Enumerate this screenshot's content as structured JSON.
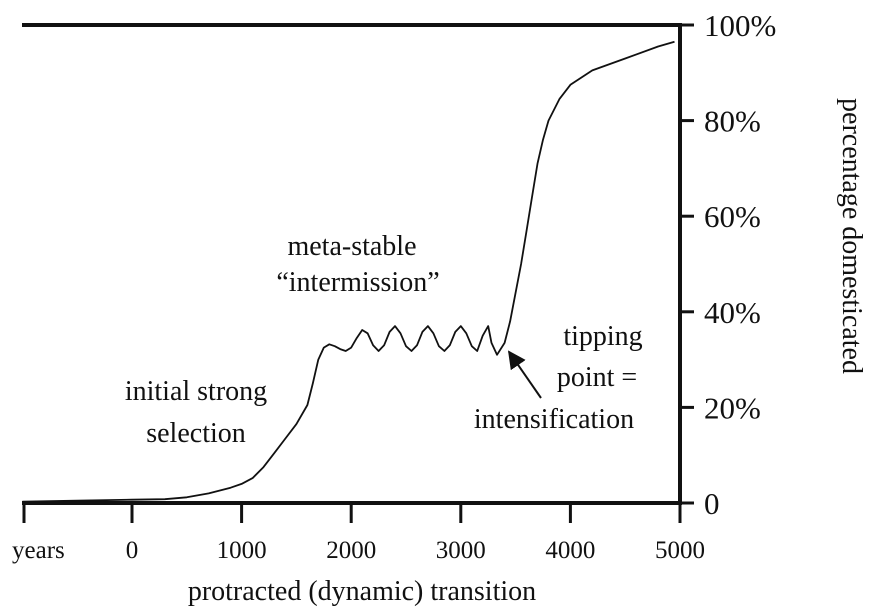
{
  "chart_data": {
    "type": "line",
    "title": "",
    "xlabel": "protracted (dynamic) transition",
    "ylabel": "percentage domesticated",
    "x_unit_label": "years",
    "xlim": [
      -1000,
      5000
    ],
    "ylim": [
      0,
      100
    ],
    "x_ticks": [
      0,
      1000,
      2000,
      3000,
      4000,
      5000
    ],
    "x_tick_labels": [
      "0",
      "1000",
      "2000",
      "3000",
      "4000",
      "5000"
    ],
    "y_ticks": [
      0,
      20,
      40,
      60,
      80,
      100
    ],
    "y_tick_labels": [
      "0",
      "20%",
      "40%",
      "60%",
      "80%",
      "100%"
    ],
    "y_axis_side": "right",
    "grid": false,
    "series": [
      {
        "points": [
          [
            -1000,
            0.3
          ],
          [
            -500,
            0.5
          ],
          [
            0,
            0.7
          ],
          [
            300,
            0.8
          ],
          [
            500,
            1.2
          ],
          [
            700,
            2.0
          ],
          [
            900,
            3.2
          ],
          [
            1000,
            4.0
          ],
          [
            1100,
            5.2
          ],
          [
            1200,
            7.5
          ],
          [
            1300,
            10.5
          ],
          [
            1400,
            13.5
          ],
          [
            1500,
            16.5
          ],
          [
            1600,
            20.5
          ],
          [
            1650,
            25.0
          ],
          [
            1700,
            30.0
          ],
          [
            1750,
            32.5
          ],
          [
            1800,
            33.2
          ],
          [
            1850,
            32.8
          ],
          [
            1900,
            32.2
          ],
          [
            1950,
            31.8
          ],
          [
            2000,
            32.5
          ],
          [
            2050,
            34.5
          ],
          [
            2100,
            36.2
          ],
          [
            2150,
            35.5
          ],
          [
            2200,
            33.0
          ],
          [
            2250,
            31.8
          ],
          [
            2300,
            33.0
          ],
          [
            2350,
            35.8
          ],
          [
            2400,
            37.0
          ],
          [
            2450,
            35.5
          ],
          [
            2500,
            32.8
          ],
          [
            2550,
            31.8
          ],
          [
            2600,
            33.0
          ],
          [
            2650,
            35.8
          ],
          [
            2700,
            37.0
          ],
          [
            2750,
            35.5
          ],
          [
            2800,
            32.8
          ],
          [
            2850,
            31.8
          ],
          [
            2900,
            33.0
          ],
          [
            2950,
            35.8
          ],
          [
            3000,
            37.0
          ],
          [
            3050,
            35.5
          ],
          [
            3100,
            32.8
          ],
          [
            3150,
            31.8
          ],
          [
            3200,
            35.0
          ],
          [
            3250,
            37.0
          ],
          [
            3280,
            33.5
          ],
          [
            3330,
            31.0
          ],
          [
            3400,
            33.5
          ],
          [
            3450,
            38.0
          ],
          [
            3500,
            44.0
          ],
          [
            3550,
            50.0
          ],
          [
            3600,
            57.0
          ],
          [
            3650,
            64.0
          ],
          [
            3700,
            71.0
          ],
          [
            3750,
            76.0
          ],
          [
            3800,
            80.0
          ],
          [
            3900,
            84.5
          ],
          [
            4000,
            87.5
          ],
          [
            4200,
            90.5
          ],
          [
            4500,
            93.0
          ],
          [
            4800,
            95.5
          ],
          [
            4950,
            96.5
          ]
        ]
      }
    ],
    "annotations": [
      {
        "lines": [
          "meta-stable",
          "“intermission”"
        ]
      },
      {
        "lines": [
          "initial strong",
          "selection"
        ]
      },
      {
        "lines": [
          "tipping",
          "point =",
          "intensification"
        ],
        "arrow_to": [
          3330,
          31.0
        ]
      }
    ]
  }
}
